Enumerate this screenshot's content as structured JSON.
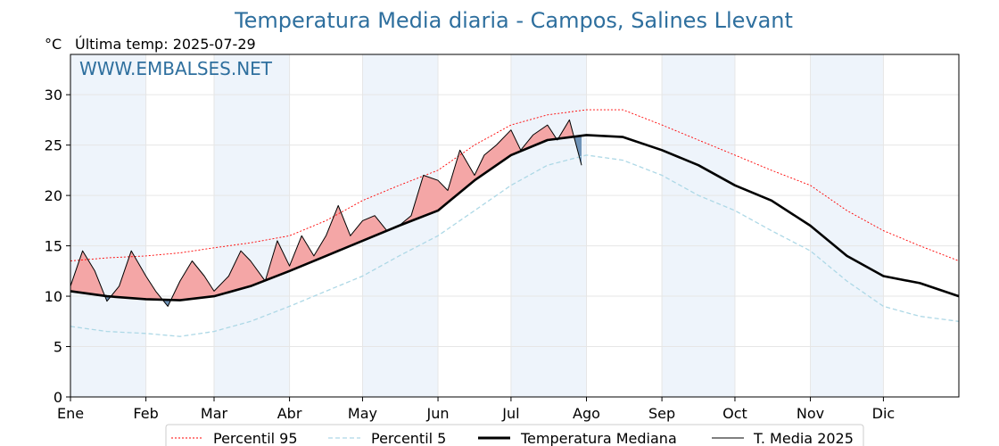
{
  "chart_data": {
    "type": "line",
    "title": "Temperatura Media diaria - Campos, Salines Llevant",
    "unit_label": "°C",
    "last_temp_label": "Última temp: 2025-07-29",
    "watermark": "WWW.EMBALSES.NET",
    "ylim": [
      0,
      34
    ],
    "yticks": [
      "0",
      "5",
      "10",
      "15",
      "20",
      "25",
      "30"
    ],
    "x_range_days": [
      0,
      365
    ],
    "months": [
      "Ene",
      "Feb",
      "Mar",
      "Abr",
      "May",
      "Jun",
      "Jul",
      "Ago",
      "Sep",
      "Oct",
      "Nov",
      "Dic"
    ],
    "grid": true,
    "legend_position": "bottom",
    "legend": [
      "Percentil 95",
      "Percentil 5",
      "Temperatura Mediana",
      "T. Media 2025"
    ],
    "colors": {
      "p95": "#ff0000",
      "p5": "#add8e6",
      "median": "#000000",
      "t2025": "#000000",
      "fill_above": "#f4a6a6",
      "fill_below": "#6f93b8",
      "month_band": "#eef4fb",
      "title": "#2e6f9e"
    },
    "series": [
      {
        "name": "Percentil 95",
        "x": [
          0,
          15,
          31,
          45,
          59,
          74,
          90,
          105,
          120,
          135,
          151,
          166,
          181,
          196,
          212,
          227,
          243,
          258,
          273,
          288,
          304,
          319,
          334,
          349,
          365
        ],
        "values": [
          13.5,
          13.8,
          14.0,
          14.3,
          14.8,
          15.3,
          16.0,
          17.5,
          19.5,
          21.0,
          22.5,
          25.0,
          27.0,
          28.0,
          28.5,
          28.5,
          27.0,
          25.5,
          24.0,
          22.5,
          21.0,
          18.5,
          16.5,
          15.0,
          13.5
        ]
      },
      {
        "name": "Percentil 5",
        "x": [
          0,
          15,
          31,
          45,
          59,
          74,
          90,
          105,
          120,
          135,
          151,
          166,
          181,
          196,
          212,
          227,
          243,
          258,
          273,
          288,
          304,
          319,
          334,
          349,
          365
        ],
        "values": [
          7.0,
          6.5,
          6.3,
          6.0,
          6.5,
          7.5,
          9.0,
          10.5,
          12.0,
          14.0,
          16.0,
          18.5,
          21.0,
          23.0,
          24.0,
          23.5,
          22.0,
          20.0,
          18.5,
          16.5,
          14.5,
          11.5,
          9.0,
          8.0,
          7.5
        ]
      },
      {
        "name": "Temperatura Mediana",
        "x": [
          0,
          15,
          31,
          45,
          59,
          74,
          90,
          105,
          120,
          135,
          151,
          166,
          181,
          196,
          212,
          227,
          243,
          258,
          273,
          288,
          304,
          319,
          334,
          349,
          365
        ],
        "values": [
          10.5,
          10.0,
          9.7,
          9.6,
          10.0,
          11.0,
          12.5,
          14.0,
          15.5,
          17.0,
          18.5,
          21.5,
          24.0,
          25.5,
          26.0,
          25.8,
          24.5,
          23.0,
          21.0,
          19.5,
          17.0,
          14.0,
          12.0,
          11.3,
          10.0
        ]
      },
      {
        "name": "T. Media 2025",
        "x": [
          0,
          5,
          10,
          15,
          20,
          25,
          31,
          35,
          40,
          45,
          50,
          55,
          59,
          65,
          70,
          74,
          80,
          85,
          90,
          95,
          100,
          105,
          110,
          115,
          120,
          125,
          130,
          135,
          140,
          145,
          151,
          155,
          160,
          166,
          170,
          175,
          181,
          185,
          190,
          196,
          200,
          205,
          210
        ],
        "values": [
          11.0,
          14.5,
          12.5,
          9.5,
          11.0,
          14.5,
          12.0,
          10.5,
          9.0,
          11.5,
          13.5,
          12.0,
          10.5,
          12.0,
          14.5,
          13.5,
          11.5,
          15.5,
          13.0,
          16.0,
          14.0,
          16.0,
          19.0,
          16.0,
          17.5,
          18.0,
          16.5,
          17.0,
          18.0,
          22.0,
          21.5,
          20.5,
          24.5,
          22.0,
          24.0,
          25.0,
          26.5,
          24.5,
          26.0,
          27.0,
          25.5,
          27.5,
          23.0
        ]
      }
    ]
  }
}
